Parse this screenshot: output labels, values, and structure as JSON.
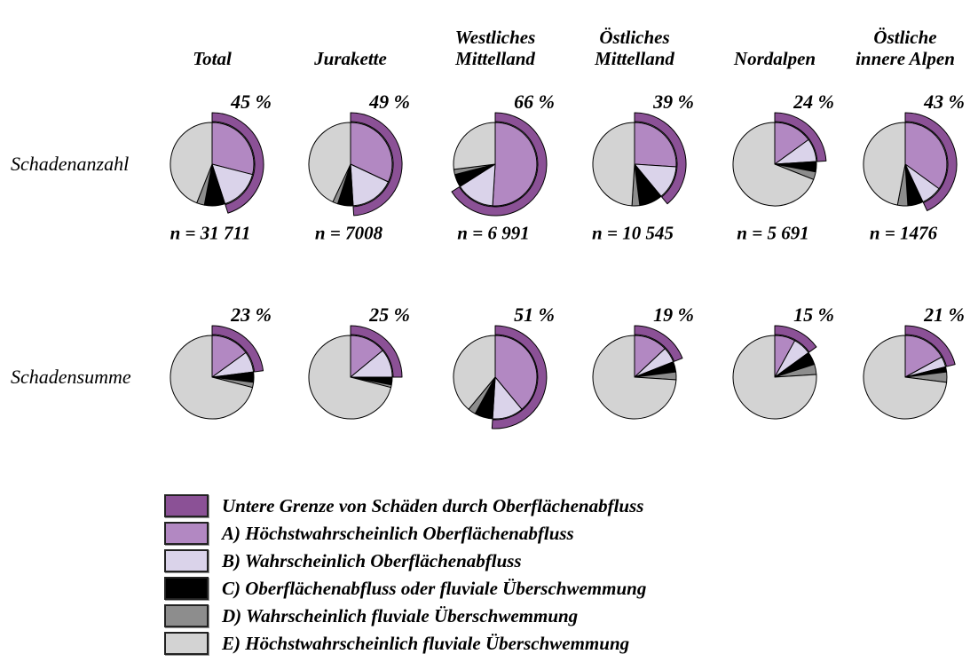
{
  "rows": [
    {
      "label": "Schadenanzahl"
    },
    {
      "label": "Schadensumme"
    }
  ],
  "columns": [
    {
      "label": "Total"
    },
    {
      "label": "Jurakette"
    },
    {
      "label": "Westliches Mittelland"
    },
    {
      "label": "Östliches Mittelland"
    },
    {
      "label": "Nordalpen"
    },
    {
      "label": "Östliche innere Alpen"
    }
  ],
  "legend": [
    {
      "label": "Untere Grenze von Schäden durch Oberflächenabfluss",
      "color": "#8B5196"
    },
    {
      "label": "A) Höchstwahrscheinlich Oberflächenabfluss",
      "color": "#B288C2"
    },
    {
      "label": "B) Wahrscheinlich Oberflächenabfluss",
      "color": "#DAD3EA"
    },
    {
      "label": "C) Oberflächenabfluss oder fluviale Überschwemmung",
      "color": "#000000"
    },
    {
      "label": "D) Wahrscheinlich fluviale Überschwemmung",
      "color": "#8D8D8D"
    },
    {
      "label": "E) Höchstwahrscheinlich fluviale Überschwemmung",
      "color": "#D3D3D3"
    }
  ],
  "chart_data": {
    "type": "pie",
    "unit": "%",
    "slice_order": [
      "A",
      "B",
      "C",
      "D",
      "E"
    ],
    "outer_arc": "A+B = Untere Grenze von Schäden durch Oberflächenabfluss, starts at 12 o'clock clockwise",
    "legend_position": "bottom-left",
    "pies": [
      {
        "row": "Schadenanzahl",
        "column": "Total",
        "pct": 45,
        "pct_label": "45 %",
        "n": 31711,
        "n_label": "n = 31 711",
        "slices": {
          "A": 29,
          "B": 16,
          "C": 8,
          "D": 3,
          "E": 44
        }
      },
      {
        "row": "Schadenanzahl",
        "column": "Jurakette",
        "pct": 49,
        "pct_label": "49 %",
        "n": 7008,
        "n_label": "n = 7008",
        "slices": {
          "A": 32,
          "B": 17,
          "C": 6,
          "D": 2,
          "E": 43
        }
      },
      {
        "row": "Schadenanzahl",
        "column": "Westliches Mittelland",
        "pct": 66,
        "pct_label": "66 %",
        "n": 6991,
        "n_label": "n = 6 991",
        "slices": {
          "A": 51,
          "B": 15,
          "C": 5,
          "D": 2,
          "E": 27
        }
      },
      {
        "row": "Schadenanzahl",
        "column": "Östliches Mittelland",
        "pct": 39,
        "pct_label": "39 %",
        "n": 10545,
        "n_label": "n = 10 545",
        "slices": {
          "A": 26,
          "B": 13,
          "C": 9,
          "D": 3,
          "E": 49
        }
      },
      {
        "row": "Schadenanzahl",
        "column": "Nordalpen",
        "pct": 24,
        "pct_label": "24 %",
        "n": 5691,
        "n_label": "n = 5 691",
        "slices": {
          "A": 15,
          "B": 9,
          "C": 4,
          "D": 3,
          "E": 69
        }
      },
      {
        "row": "Schadenanzahl",
        "column": "Östliche innere Alpen",
        "pct": 43,
        "pct_label": "43 %",
        "n": 1476,
        "n_label": "n = 1476",
        "slices": {
          "A": 35,
          "B": 8,
          "C": 6,
          "D": 4,
          "E": 47
        }
      },
      {
        "row": "Schadensumme",
        "column": "Total",
        "pct": 23,
        "pct_label": "23 %",
        "slices": {
          "A": 15,
          "B": 8,
          "C": 4,
          "D": 2,
          "E": 71
        }
      },
      {
        "row": "Schadensumme",
        "column": "Jurakette",
        "pct": 25,
        "pct_label": "25 %",
        "slices": {
          "A": 14,
          "B": 11,
          "C": 3,
          "D": 1,
          "E": 71
        }
      },
      {
        "row": "Schadensumme",
        "column": "Westliches Mittelland",
        "pct": 51,
        "pct_label": "51 %",
        "slices": {
          "A": 39,
          "B": 12,
          "C": 7,
          "D": 3,
          "E": 39
        }
      },
      {
        "row": "Schadensumme",
        "column": "Östliches Mittelland",
        "pct": 19,
        "pct_label": "19 %",
        "slices": {
          "A": 13,
          "B": 6,
          "C": 4,
          "D": 3,
          "E": 74
        }
      },
      {
        "row": "Schadensumme",
        "column": "Nordalpen",
        "pct": 15,
        "pct_label": "15 %",
        "slices": {
          "A": 8,
          "B": 7,
          "C": 5,
          "D": 4,
          "E": 76
        }
      },
      {
        "row": "Schadensumme",
        "column": "Östliche innere Alpen",
        "pct": 21,
        "pct_label": "21 %",
        "slices": {
          "A": 17,
          "B": 4,
          "C": 2,
          "D": 4,
          "E": 73
        }
      }
    ]
  }
}
